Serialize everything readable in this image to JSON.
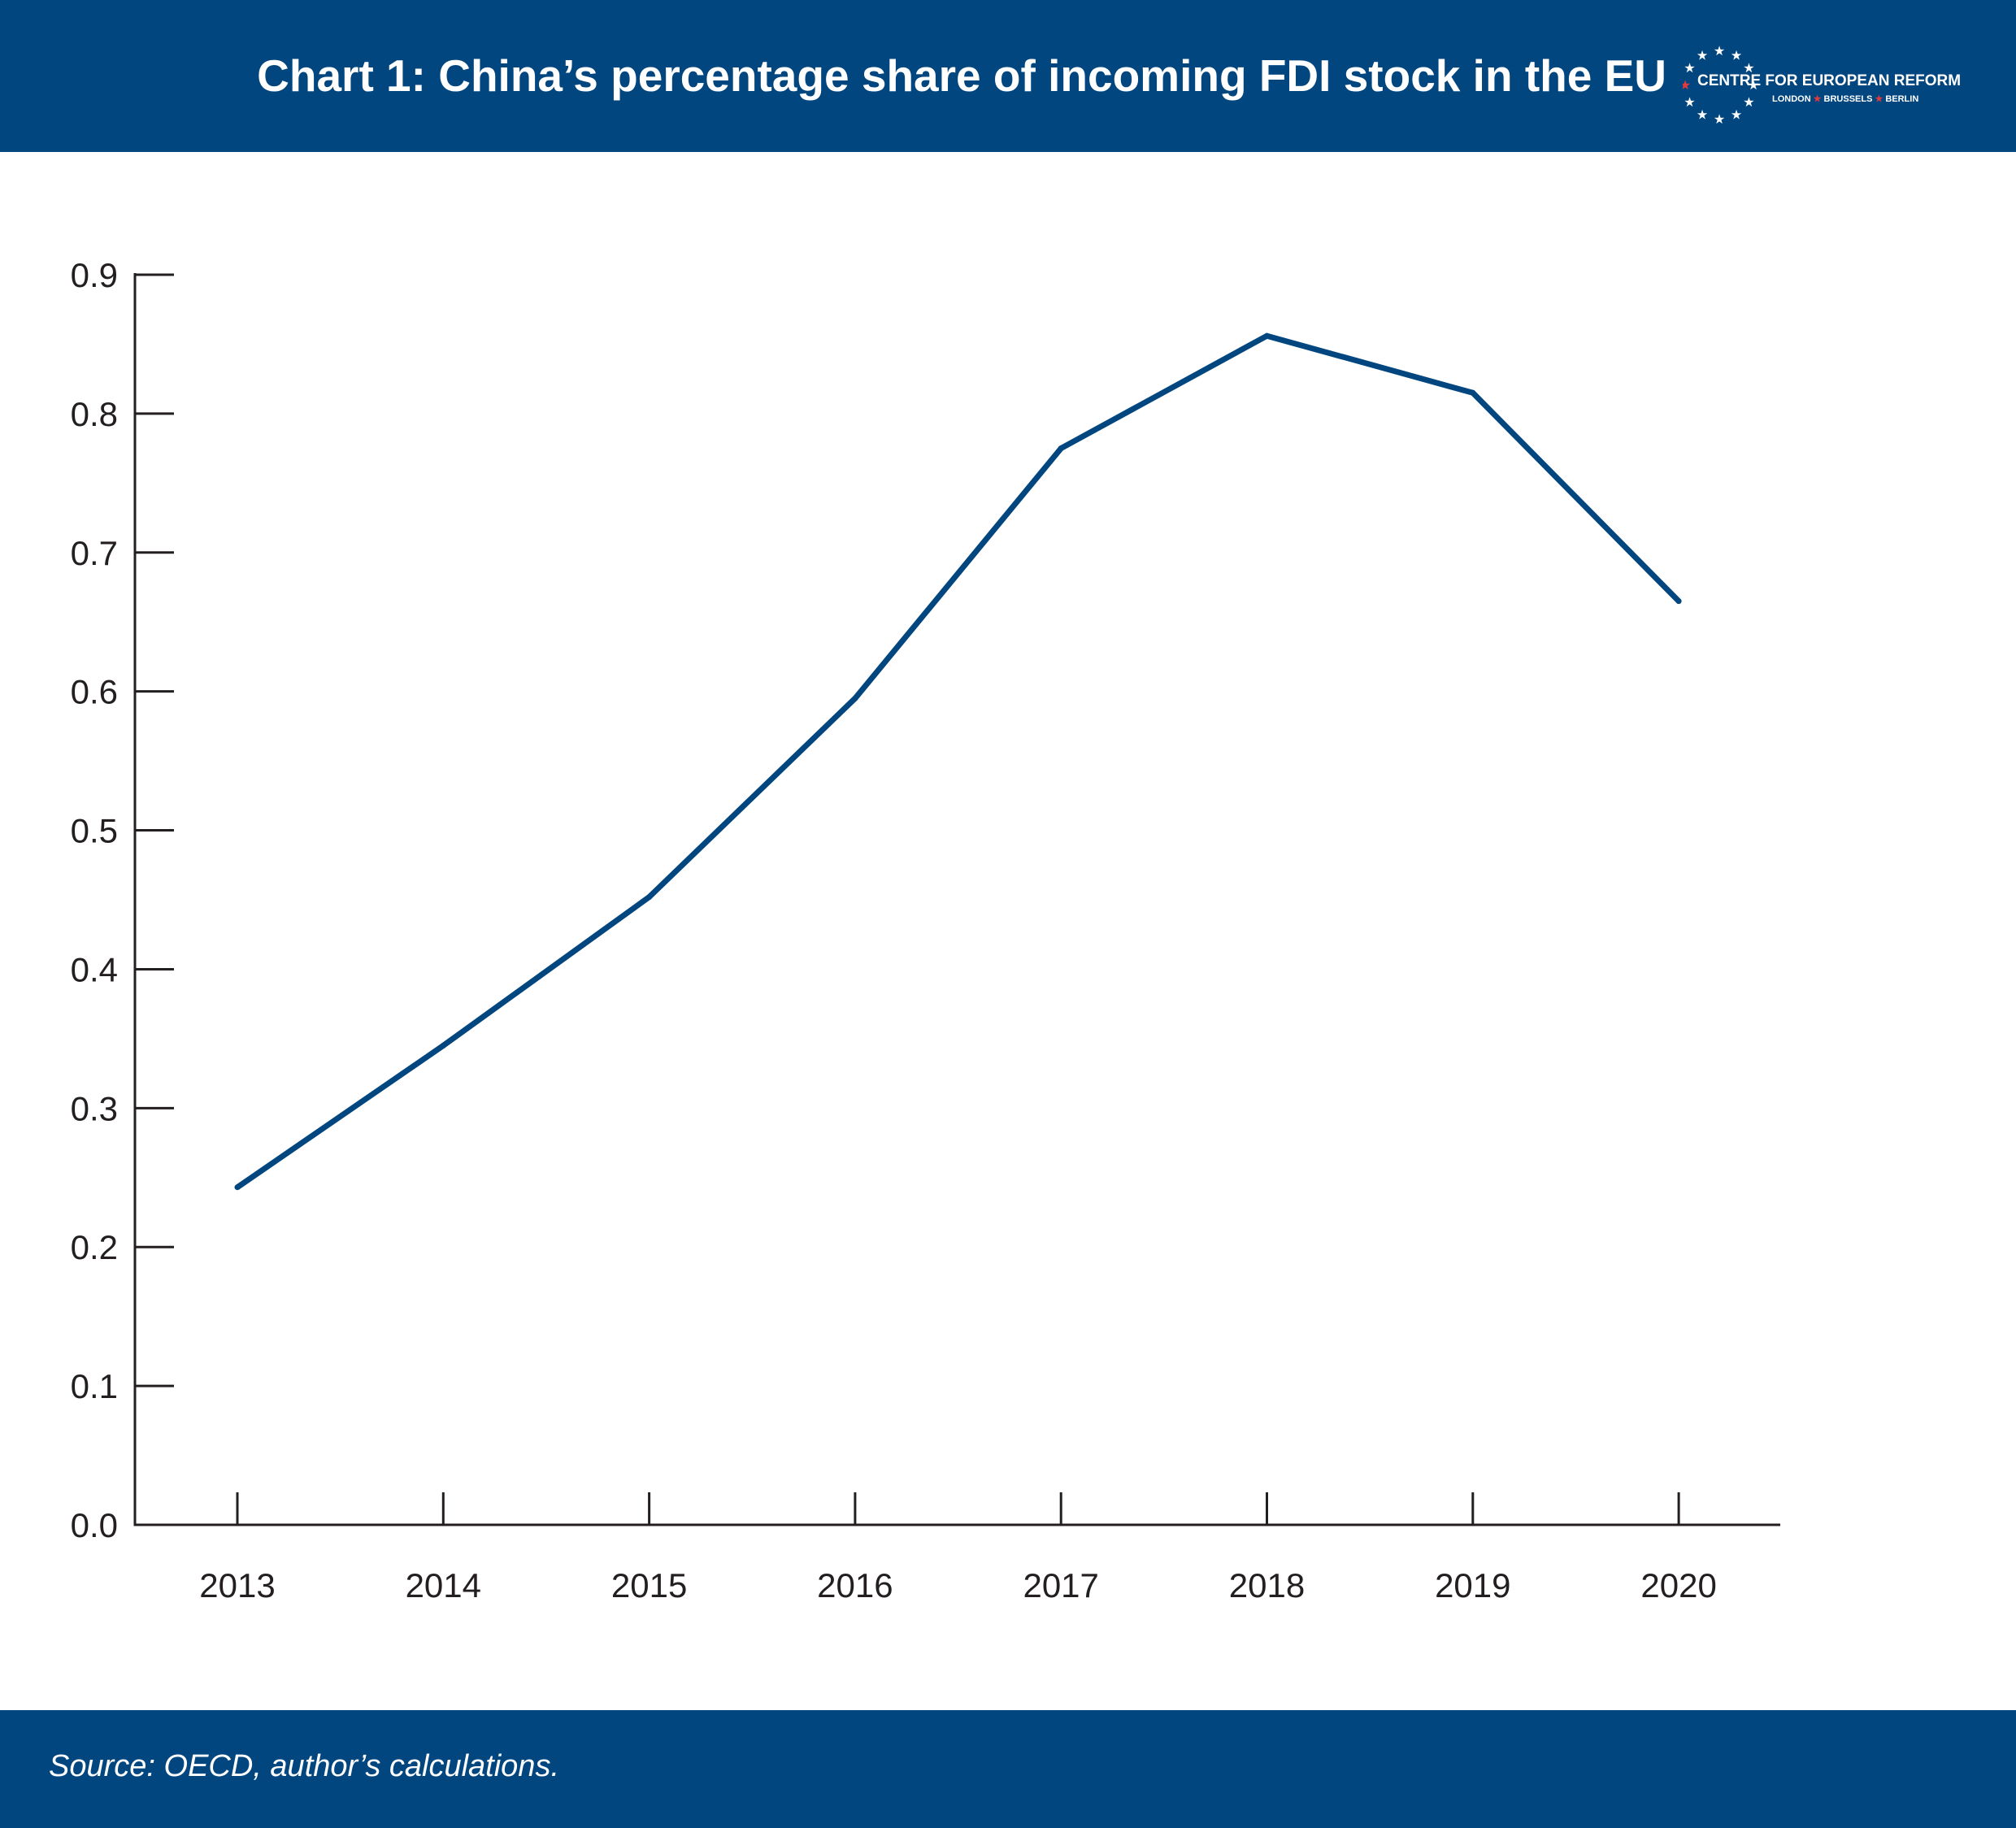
{
  "header": {
    "title": "Chart 1: China’s percentage share of incoming FDI stock in the EU",
    "logo": {
      "name": "CENTRE FOR EUROPEAN REFORM",
      "cities": [
        "LONDON",
        "BRUSSELS",
        "BERLIN"
      ],
      "star_color": "#ffffff",
      "accent_star_color": "#e03a3e"
    }
  },
  "footer": {
    "source": "Source: OECD, author’s calculations."
  },
  "colors": {
    "brand": "#024680",
    "line": "#024680",
    "axis": "#231f20"
  },
  "chart_data": {
    "type": "line",
    "title": "Chart 1: China’s percentage share of incoming FDI stock in the EU",
    "xlabel": "",
    "ylabel": "",
    "categories": [
      "2013",
      "2014",
      "2015",
      "2016",
      "2017",
      "2018",
      "2019",
      "2020"
    ],
    "series": [
      {
        "values": [
          0.243,
          0.345,
          0.452,
          0.595,
          0.775,
          0.856,
          0.815,
          0.665
        ]
      }
    ],
    "ylim": [
      0.0,
      0.9
    ],
    "yticks": [
      "0.0",
      "0.1",
      "0.2",
      "0.3",
      "0.4",
      "0.5",
      "0.6",
      "0.7",
      "0.8",
      "0.9"
    ],
    "grid": false,
    "legend": "none"
  }
}
